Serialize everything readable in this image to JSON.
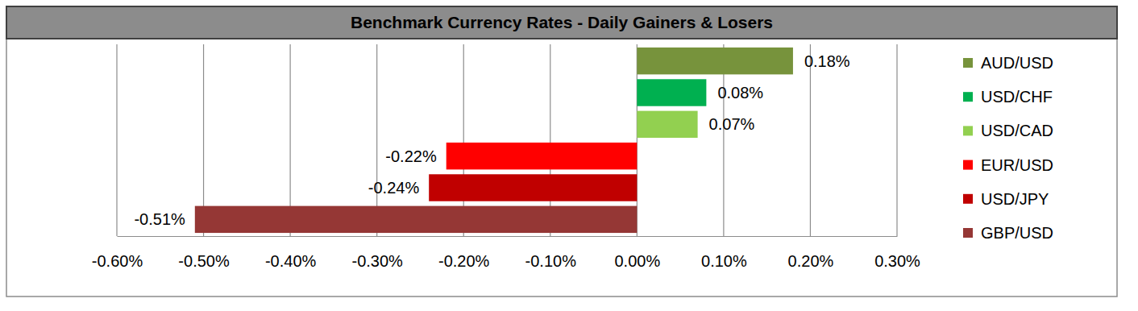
{
  "chart_data": {
    "type": "bar",
    "title": "Benchmark Currency Rates - Daily Gainers & Losers",
    "orientation": "horizontal",
    "categories": [
      "AUD/USD",
      "USD/CHF",
      "USD/CAD",
      "EUR/USD",
      "USD/JPY",
      "GBP/USD"
    ],
    "values": [
      0.18,
      0.08,
      0.07,
      -0.22,
      -0.24,
      -0.51
    ],
    "value_labels": [
      "0.18%",
      "0.08%",
      "0.07%",
      "-0.22%",
      "-0.24%",
      "-0.51%"
    ],
    "colors": [
      "#77933c",
      "#00b050",
      "#92d050",
      "#ff0000",
      "#c00000",
      "#953735"
    ],
    "xlim": [
      -0.6,
      0.3
    ],
    "xticks": [
      {
        "value": -0.6,
        "label": "-0.60%"
      },
      {
        "value": -0.5,
        "label": "-0.50%"
      },
      {
        "value": -0.4,
        "label": "-0.40%"
      },
      {
        "value": -0.3,
        "label": "-0.30%"
      },
      {
        "value": -0.2,
        "label": "-0.20%"
      },
      {
        "value": -0.1,
        "label": "-0.10%"
      },
      {
        "value": 0,
        "label": "0.00%"
      },
      {
        "value": 0.1,
        "label": "0.10%"
      },
      {
        "value": 0.2,
        "label": "0.20%"
      },
      {
        "value": 0.3,
        "label": "0.30%"
      }
    ],
    "grid": true,
    "data_labels": true,
    "legend": "right",
    "tick_labels": "x"
  }
}
